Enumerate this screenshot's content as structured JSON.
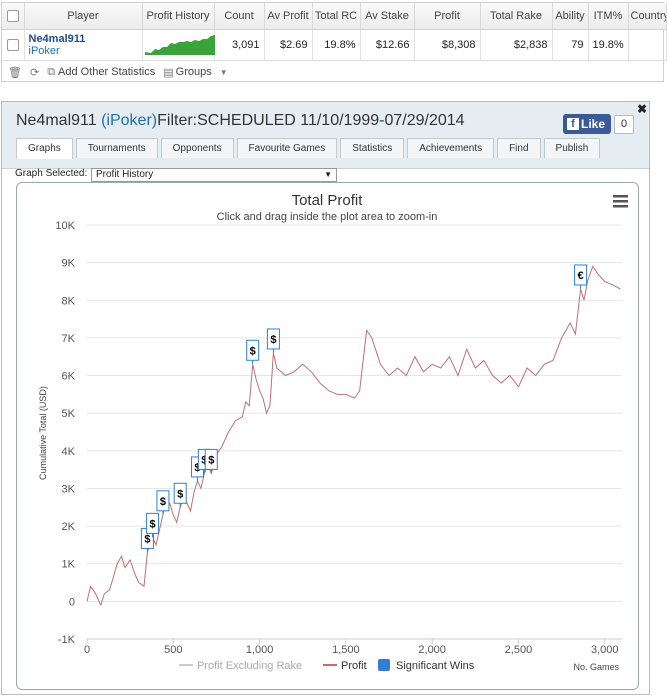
{
  "stats_table": {
    "headers": [
      "Player",
      "Profit History",
      "Count",
      "Av Profit",
      "Total RC",
      "Av Stake",
      "Profit",
      "Total Rake",
      "Ability",
      "ITM%",
      "Country"
    ],
    "row": {
      "player_name": "Ne4mal911",
      "player_site": "iPoker",
      "count": "3,091",
      "av_profit": "$2.69",
      "total_rc": "19.8%",
      "av_stake": "$12.66",
      "profit": "$8,308",
      "total_rake": "$2,838",
      "ability": "79",
      "itm": "19.8%",
      "country": ""
    },
    "toolbar": {
      "add_stats_label": "Add Other Statistics",
      "groups_label": "Groups"
    }
  },
  "panel": {
    "title_name": "Ne4mal911",
    "title_site": "(iPoker)",
    "title_filter": "Filter:SCHEDULED 11/10/1999-07/29/2014",
    "like_label": "Like",
    "like_count": "0",
    "close_glyph": "✖",
    "tabs": [
      "Graphs",
      "Tournaments",
      "Opponents",
      "Favourite Games",
      "Statistics",
      "Achievements",
      "Find",
      "Publish"
    ],
    "active_tab": "Graphs",
    "graph_selected_label": "Graph Selected:",
    "graph_selected_value": "Profit History"
  },
  "chart_data": {
    "type": "line",
    "title": "Total Profit",
    "subtitle": "Click and drag inside the plot area to zoom-in",
    "ylabel": "Cumulative Total (USD)",
    "xlabel": "No. Games",
    "xlim": [
      0,
      3100
    ],
    "ylim": [
      -1000,
      10000
    ],
    "x_ticks": [
      0,
      500,
      1000,
      1500,
      2000,
      2500,
      3000
    ],
    "x_tick_labels": [
      "0",
      "500",
      "1,000",
      "1,500",
      "2,000",
      "2,500",
      "3,000"
    ],
    "y_ticks": [
      -1000,
      0,
      1000,
      2000,
      3000,
      4000,
      5000,
      6000,
      7000,
      8000,
      9000,
      10000
    ],
    "y_tick_labels": [
      "-1K",
      "0",
      "1K",
      "2K",
      "3K",
      "4K",
      "5K",
      "6K",
      "7K",
      "8K",
      "9K",
      "10K"
    ],
    "legend": [
      "Profit Excluding Rake",
      "Profit",
      "Significant Wins"
    ],
    "legend_placement": "bottom",
    "series": [
      {
        "name": "Profit",
        "color": "#c07070",
        "points": [
          [
            0,
            0
          ],
          [
            20,
            400
          ],
          [
            50,
            200
          ],
          [
            80,
            -100
          ],
          [
            100,
            200
          ],
          [
            130,
            300
          ],
          [
            150,
            600
          ],
          [
            175,
            1000
          ],
          [
            200,
            1200
          ],
          [
            220,
            900
          ],
          [
            250,
            1100
          ],
          [
            280,
            700
          ],
          [
            300,
            500
          ],
          [
            330,
            400
          ],
          [
            350,
            1300
          ],
          [
            380,
            1700
          ],
          [
            400,
            1500
          ],
          [
            420,
            1900
          ],
          [
            440,
            2300
          ],
          [
            460,
            2700
          ],
          [
            480,
            2600
          ],
          [
            500,
            2300
          ],
          [
            520,
            2100
          ],
          [
            540,
            2500
          ],
          [
            560,
            2800
          ],
          [
            580,
            2600
          ],
          [
            600,
            2400
          ],
          [
            620,
            2900
          ],
          [
            640,
            3200
          ],
          [
            660,
            3000
          ],
          [
            680,
            3400
          ],
          [
            700,
            3600
          ],
          [
            720,
            3400
          ],
          [
            750,
            3900
          ],
          [
            780,
            4100
          ],
          [
            820,
            4500
          ],
          [
            860,
            4800
          ],
          [
            900,
            4900
          ],
          [
            920,
            5300
          ],
          [
            940,
            5200
          ],
          [
            960,
            6300
          ],
          [
            980,
            5900
          ],
          [
            1000,
            5600
          ],
          [
            1020,
            5400
          ],
          [
            1040,
            5000
          ],
          [
            1060,
            5200
          ],
          [
            1080,
            6600
          ],
          [
            1100,
            6200
          ],
          [
            1150,
            6000
          ],
          [
            1200,
            6100
          ],
          [
            1250,
            6300
          ],
          [
            1300,
            6100
          ],
          [
            1350,
            5800
          ],
          [
            1400,
            5600
          ],
          [
            1450,
            5500
          ],
          [
            1500,
            5500
          ],
          [
            1550,
            5400
          ],
          [
            1580,
            5600
          ],
          [
            1620,
            7200
          ],
          [
            1650,
            7000
          ],
          [
            1700,
            6300
          ],
          [
            1750,
            6000
          ],
          [
            1800,
            6200
          ],
          [
            1850,
            6000
          ],
          [
            1900,
            6500
          ],
          [
            1950,
            6100
          ],
          [
            2000,
            6300
          ],
          [
            2050,
            6200
          ],
          [
            2100,
            6500
          ],
          [
            2150,
            6000
          ],
          [
            2200,
            6700
          ],
          [
            2250,
            6200
          ],
          [
            2300,
            6400
          ],
          [
            2350,
            6000
          ],
          [
            2400,
            5800
          ],
          [
            2450,
            6000
          ],
          [
            2500,
            5700
          ],
          [
            2550,
            6200
          ],
          [
            2600,
            6000
          ],
          [
            2650,
            6300
          ],
          [
            2700,
            6400
          ],
          [
            2750,
            7000
          ],
          [
            2800,
            7400
          ],
          [
            2830,
            7100
          ],
          [
            2860,
            8300
          ],
          [
            2880,
            8000
          ],
          [
            2900,
            8500
          ],
          [
            2930,
            8900
          ],
          [
            2960,
            8700
          ],
          [
            3000,
            8500
          ],
          [
            3050,
            8400
          ],
          [
            3091,
            8300
          ]
        ]
      }
    ],
    "significant_wins": [
      {
        "x": 350,
        "y": 1300,
        "symbol": "$"
      },
      {
        "x": 380,
        "y": 1700,
        "symbol": "$"
      },
      {
        "x": 440,
        "y": 2300,
        "symbol": "$"
      },
      {
        "x": 540,
        "y": 2500,
        "symbol": "$"
      },
      {
        "x": 640,
        "y": 3200,
        "symbol": "$"
      },
      {
        "x": 680,
        "y": 3400,
        "symbol": "$"
      },
      {
        "x": 720,
        "y": 3400,
        "symbol": "$"
      },
      {
        "x": 960,
        "y": 6300,
        "symbol": "$"
      },
      {
        "x": 1080,
        "y": 6600,
        "symbol": "$"
      },
      {
        "x": 2860,
        "y": 8300,
        "symbol": "€"
      }
    ]
  }
}
